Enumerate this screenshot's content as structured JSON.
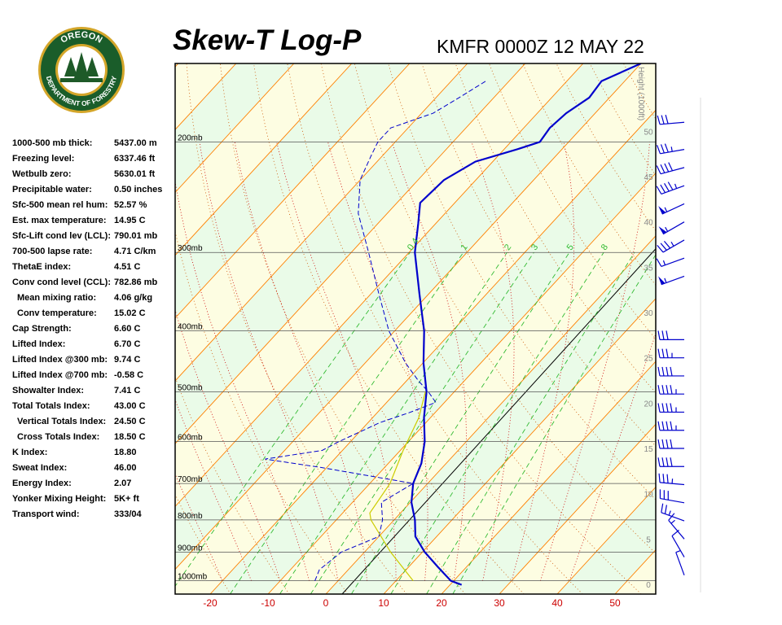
{
  "header": {
    "title": "Skew-T Log-P",
    "station_time": "KMFR 0000Z 12 MAY 22"
  },
  "logo": {
    "top_text": "OREGON",
    "bottom_text": "DEPARTMENT OF FORESTRY",
    "colors": {
      "ring": "#1a5d2a",
      "gold": "#d4a62a",
      "trees": "#1e5a28"
    }
  },
  "indices": [
    {
      "label": "1000-500 mb thick:",
      "value": "5437.00 m",
      "indent": false
    },
    {
      "label": "Freezing level:",
      "value": "6337.46 ft",
      "indent": false
    },
    {
      "label": "Wetbulb zero:",
      "value": "5630.01 ft",
      "indent": false
    },
    {
      "label": "Precipitable water:",
      "value": "0.50 inches",
      "indent": false
    },
    {
      "label": "Sfc-500 mean rel hum:",
      "value": "52.57 %",
      "indent": false
    },
    {
      "label": "Est. max temperature:",
      "value": "14.95 C",
      "indent": false
    },
    {
      "label": "Sfc-Lift cond lev (LCL):",
      "value": "790.01 mb",
      "indent": false
    },
    {
      "label": "700-500 lapse rate:",
      "value": "4.71 C/km",
      "indent": false
    },
    {
      "label": "ThetaE index:",
      "value": "4.51 C",
      "indent": false
    },
    {
      "label": "Conv cond level (CCL):",
      "value": "782.86 mb",
      "indent": false
    },
    {
      "label": "Mean mixing ratio:",
      "value": "4.06 g/kg",
      "indent": true
    },
    {
      "label": "Conv temperature:",
      "value": "15.02 C",
      "indent": true
    },
    {
      "label": "Cap Strength:",
      "value": "6.60 C",
      "indent": false
    },
    {
      "label": "Lifted Index:",
      "value": "6.70 C",
      "indent": false
    },
    {
      "label": "Lifted Index @300 mb:",
      "value": "9.74 C",
      "indent": false
    },
    {
      "label": "Lifted Index @700 mb:",
      "value": "-0.58 C",
      "indent": false
    },
    {
      "label": "Showalter Index:",
      "value": "7.41 C",
      "indent": false
    },
    {
      "label": "Total Totals Index:",
      "value": "43.00 C",
      "indent": false
    },
    {
      "label": "Vertical Totals Index:",
      "value": "24.50 C",
      "indent": true
    },
    {
      "label": "Cross Totals Index:",
      "value": "18.50 C",
      "indent": true
    },
    {
      "label": "K Index:",
      "value": "18.80",
      "indent": false
    },
    {
      "label": "Sweat Index:",
      "value": "46.00",
      "indent": false
    },
    {
      "label": "Energy Index:",
      "value": "2.07",
      "indent": false
    },
    {
      "label": "Yonker Mixing Height:",
      "value": "5K+ ft",
      "indent": false
    },
    {
      "label": "Transport wind:",
      "value": "333/04",
      "indent": false
    }
  ],
  "chart_data": {
    "type": "line",
    "title": "Skew-T Log-P",
    "x_axis": {
      "label": "",
      "unit": "C",
      "ticks": [
        -20,
        -10,
        0,
        10,
        20,
        30,
        40,
        50
      ],
      "range": [
        -27,
        57
      ]
    },
    "y_axis": {
      "scale": "log",
      "unit": "mb",
      "range": [
        1050,
        150
      ],
      "isobars": [
        1000,
        900,
        800,
        700,
        600,
        500,
        400,
        300,
        200
      ]
    },
    "height_axis": {
      "label": "Height (1000ft)",
      "ticks": [
        0,
        5,
        10,
        15,
        20,
        25,
        30,
        35,
        40,
        45,
        50
      ]
    },
    "mixing_ratio_labels": [
      "0.4",
      "1",
      "2",
      "3",
      "5",
      "8"
    ],
    "legend": "none",
    "grid": true,
    "colors": {
      "temperature": "#0000cc",
      "dewpoint": "#0000cc",
      "parcel": "#cccc00",
      "isotherm": "#ff8000",
      "dry_adiabat": "#cc5500",
      "moist_adiabat": "#cc0000",
      "mixing_ratio": "#33bb33",
      "isobar": "#555555",
      "zero_isotherm": "#000000",
      "band_a": "#eafbe8",
      "band_b": "#fdfde2",
      "tick_label": "#cc0000"
    },
    "series": [
      {
        "kind": "temperature",
        "points": [
          [
            1015,
            22.0
          ],
          [
            1000,
            19.5
          ],
          [
            950,
            15.0
          ],
          [
            900,
            10.4
          ],
          [
            850,
            6.3
          ],
          [
            800,
            3.6
          ],
          [
            750,
            0.2
          ],
          [
            700,
            -2.5
          ],
          [
            650,
            -4.3
          ],
          [
            600,
            -7.2
          ],
          [
            550,
            -11.1
          ],
          [
            500,
            -14.8
          ],
          [
            450,
            -19.9
          ],
          [
            400,
            -24.9
          ],
          [
            350,
            -31.5
          ],
          [
            300,
            -39.0
          ],
          [
            270,
            -43.0
          ],
          [
            250,
            -46.0
          ],
          [
            230,
            -45.5
          ],
          [
            215,
            -43.0
          ],
          [
            205,
            -37.5
          ],
          [
            200,
            -35.0
          ],
          [
            190,
            -35.5
          ],
          [
            180,
            -35.0
          ],
          [
            170,
            -33.5
          ],
          [
            160,
            -34.0
          ],
          [
            150,
            -30.0
          ]
        ]
      },
      {
        "kind": "dewpoint",
        "points": [
          [
            1000,
            -4.0
          ],
          [
            960,
            -5.0
          ],
          [
            900,
            -4.0
          ],
          [
            850,
            0.0
          ],
          [
            800,
            -2.0
          ],
          [
            750,
            -5.0
          ],
          [
            700,
            -2.5
          ],
          [
            660,
            -21.0
          ],
          [
            640,
            -32.0
          ],
          [
            620,
            -23.5
          ],
          [
            600,
            -22.0
          ],
          [
            580,
            -20.0
          ],
          [
            560,
            -18.0
          ],
          [
            540,
            -14.5
          ],
          [
            520,
            -11.5
          ],
          [
            500,
            -14.5
          ],
          [
            480,
            -18.0
          ],
          [
            450,
            -23.0
          ],
          [
            400,
            -31.0
          ],
          [
            350,
            -38.5
          ],
          [
            300,
            -47.0
          ],
          [
            260,
            -55.0
          ],
          [
            230,
            -60.0
          ],
          [
            210,
            -62.0
          ],
          [
            200,
            -63.0
          ],
          [
            190,
            -63.0
          ],
          [
            180,
            -58.0
          ],
          [
            170,
            -56.0
          ],
          [
            160,
            -54.0
          ]
        ]
      },
      {
        "kind": "parcel",
        "points": [
          [
            1000,
            13.0
          ],
          [
            900,
            4.5
          ],
          [
            800,
            -4.0
          ],
          [
            780,
            -5.3
          ],
          [
            700,
            -6.5
          ],
          [
            620,
            -9.5
          ],
          [
            550,
            -12.0
          ],
          [
            500,
            -15.0
          ]
        ]
      }
    ],
    "wind_barbs": [
      {
        "height_kft": 1,
        "dir": 340,
        "kt": 5
      },
      {
        "height_kft": 3,
        "dir": 330,
        "kt": 10
      },
      {
        "height_kft": 5,
        "dir": 320,
        "kt": 15
      },
      {
        "height_kft": 7,
        "dir": 290,
        "kt": 25
      },
      {
        "height_kft": 9,
        "dir": 280,
        "kt": 30
      },
      {
        "height_kft": 11,
        "dir": 275,
        "kt": 35
      },
      {
        "height_kft": 13,
        "dir": 270,
        "kt": 40
      },
      {
        "height_kft": 15,
        "dir": 270,
        "kt": 40
      },
      {
        "height_kft": 17,
        "dir": 270,
        "kt": 45
      },
      {
        "height_kft": 19,
        "dir": 270,
        "kt": 45
      },
      {
        "height_kft": 21,
        "dir": 270,
        "kt": 45
      },
      {
        "height_kft": 23,
        "dir": 270,
        "kt": 40
      },
      {
        "height_kft": 25,
        "dir": 270,
        "kt": 35
      },
      {
        "height_kft": 27,
        "dir": 270,
        "kt": 30
      },
      {
        "height_kft": 34,
        "dir": 250,
        "kt": 55
      },
      {
        "height_kft": 36,
        "dir": 250,
        "kt": 15
      },
      {
        "height_kft": 38,
        "dir": 240,
        "kt": 35
      },
      {
        "height_kft": 40,
        "dir": 240,
        "kt": 55
      },
      {
        "height_kft": 42,
        "dir": 245,
        "kt": 55
      },
      {
        "height_kft": 44,
        "dir": 250,
        "kt": 45
      },
      {
        "height_kft": 46,
        "dir": 255,
        "kt": 40
      },
      {
        "height_kft": 48,
        "dir": 260,
        "kt": 35
      },
      {
        "height_kft": 51,
        "dir": 265,
        "kt": 30
      }
    ]
  }
}
